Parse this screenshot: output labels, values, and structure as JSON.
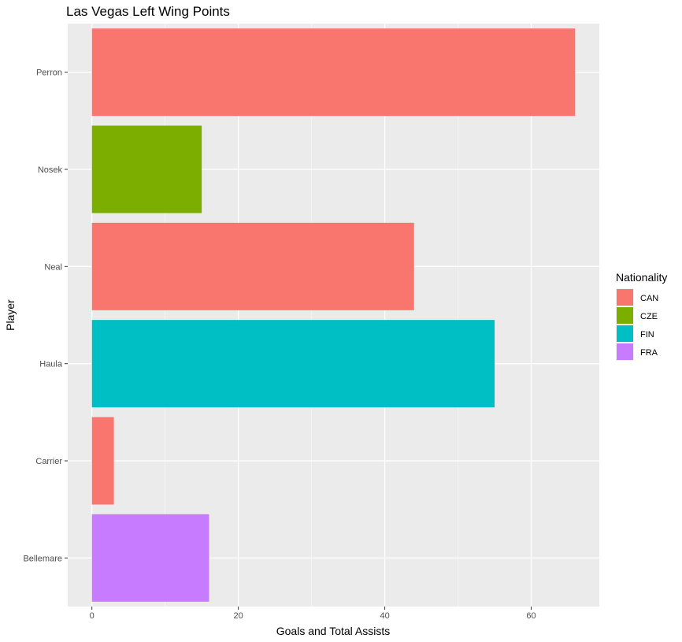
{
  "chart_data": {
    "type": "bar",
    "orientation": "horizontal",
    "title": "Las Vegas Left Wing Points",
    "xlabel": "Goals and Total Assists",
    "ylabel": "Player",
    "xlim": [
      -3.3,
      69.3
    ],
    "xticks": [
      "0",
      "20",
      "40",
      "60"
    ],
    "grid": true,
    "legend_position": "right",
    "legend_title": "Nationality",
    "categories": [
      "Perron",
      "Nosek",
      "Neal",
      "Haula",
      "Carrier",
      "Bellemare"
    ],
    "values": [
      66,
      15,
      44,
      55,
      3,
      16
    ],
    "nationality": [
      "CAN",
      "CZE",
      "CAN",
      "FIN",
      "CAN",
      "FRA"
    ],
    "legend": [
      {
        "label": "CAN",
        "color": "#F8766D"
      },
      {
        "label": "CZE",
        "color": "#7CAE00"
      },
      {
        "label": "FIN",
        "color": "#00BFC4"
      },
      {
        "label": "FRA",
        "color": "#C77CFF"
      }
    ]
  }
}
